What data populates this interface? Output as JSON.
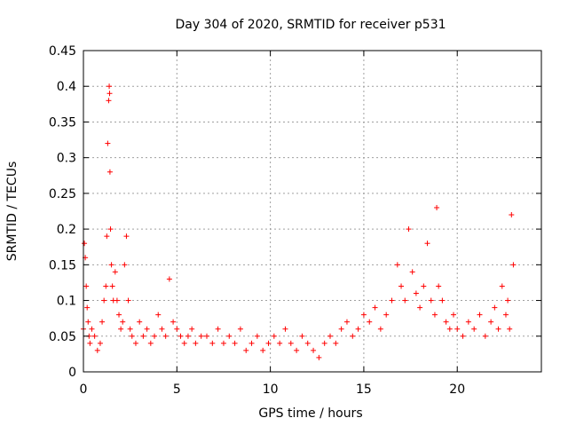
{
  "chart_data": {
    "type": "scatter",
    "title": "Day 304 of 2020, SRMTID for receiver p531",
    "xlabel": "GPS time / hours",
    "ylabel": "SRMTID / TECUs",
    "xlim": [
      0,
      24.5
    ],
    "ylim": [
      0,
      0.45
    ],
    "xticks": [
      0,
      5,
      10,
      15,
      20
    ],
    "xtick_labels": [
      "0",
      "5",
      "10",
      "15",
      "20"
    ],
    "yticks": [
      0,
      0.05,
      0.1,
      0.15,
      0.2,
      0.25,
      0.3,
      0.35,
      0.4,
      0.45
    ],
    "ytick_labels": [
      "0",
      "0.05",
      "0.1",
      "0.15",
      "0.2",
      "0.25",
      "0.3",
      "0.35",
      "0.4",
      "0.45"
    ],
    "grid": true,
    "marker": "+",
    "color": "#ff0000",
    "series": [
      {
        "name": "p531",
        "x": [
          0.0,
          0.05,
          0.1,
          0.15,
          0.2,
          0.25,
          0.3,
          0.35,
          0.45,
          0.6,
          0.75,
          0.9,
          1.0,
          1.1,
          1.2,
          1.25,
          1.3,
          1.35,
          1.38,
          1.4,
          1.42,
          1.45,
          1.5,
          1.55,
          1.6,
          1.7,
          1.8,
          1.9,
          2.0,
          2.1,
          2.2,
          2.3,
          2.4,
          2.5,
          2.6,
          2.8,
          3.0,
          3.2,
          3.4,
          3.6,
          3.8,
          4.0,
          4.2,
          4.4,
          4.6,
          4.8,
          5.0,
          5.2,
          5.4,
          5.6,
          5.8,
          6.0,
          6.3,
          6.6,
          6.9,
          7.2,
          7.5,
          7.8,
          8.1,
          8.4,
          8.7,
          9.0,
          9.3,
          9.6,
          9.9,
          10.2,
          10.5,
          10.8,
          11.1,
          11.4,
          11.7,
          12.0,
          12.3,
          12.6,
          12.9,
          13.2,
          13.5,
          13.8,
          14.1,
          14.4,
          14.7,
          15.0,
          15.3,
          15.6,
          15.9,
          16.2,
          16.5,
          16.8,
          17.0,
          17.2,
          17.4,
          17.6,
          17.8,
          18.0,
          18.2,
          18.4,
          18.6,
          18.8,
          18.9,
          19.0,
          19.2,
          19.4,
          19.6,
          19.8,
          20.0,
          20.3,
          20.6,
          20.9,
          21.2,
          21.5,
          21.8,
          22.0,
          22.2,
          22.4,
          22.6,
          22.7,
          22.8,
          22.9,
          23.0
        ],
        "y": [
          0.06,
          0.18,
          0.16,
          0.12,
          0.09,
          0.07,
          0.05,
          0.04,
          0.06,
          0.05,
          0.03,
          0.04,
          0.07,
          0.1,
          0.12,
          0.19,
          0.32,
          0.38,
          0.4,
          0.39,
          0.28,
          0.2,
          0.15,
          0.12,
          0.1,
          0.14,
          0.1,
          0.08,
          0.06,
          0.07,
          0.15,
          0.19,
          0.1,
          0.06,
          0.05,
          0.04,
          0.07,
          0.05,
          0.06,
          0.04,
          0.05,
          0.08,
          0.06,
          0.05,
          0.13,
          0.07,
          0.06,
          0.05,
          0.04,
          0.05,
          0.06,
          0.04,
          0.05,
          0.05,
          0.04,
          0.06,
          0.04,
          0.05,
          0.04,
          0.06,
          0.03,
          0.04,
          0.05,
          0.03,
          0.04,
          0.05,
          0.04,
          0.06,
          0.04,
          0.03,
          0.05,
          0.04,
          0.03,
          0.02,
          0.04,
          0.05,
          0.04,
          0.06,
          0.07,
          0.05,
          0.06,
          0.08,
          0.07,
          0.09,
          0.06,
          0.08,
          0.1,
          0.15,
          0.12,
          0.1,
          0.2,
          0.14,
          0.11,
          0.09,
          0.12,
          0.18,
          0.1,
          0.08,
          0.23,
          0.12,
          0.1,
          0.07,
          0.06,
          0.08,
          0.06,
          0.05,
          0.07,
          0.06,
          0.08,
          0.05,
          0.07,
          0.09,
          0.06,
          0.12,
          0.08,
          0.1,
          0.06,
          0.22,
          0.15
        ]
      }
    ]
  }
}
